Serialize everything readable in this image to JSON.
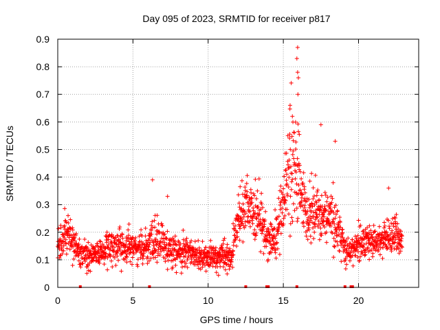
{
  "chart_data": {
    "type": "scatter",
    "title": "Day 095 of 2023, SRMTID for receiver p817",
    "xlabel": "GPS time / hours",
    "ylabel": "SRMTID / TECUs",
    "xlim": [
      0,
      24.0
    ],
    "ylim": [
      0,
      0.9
    ],
    "xticks": [
      0,
      5,
      10,
      15,
      20
    ],
    "xtick_labels": [
      "0",
      "5",
      "10",
      "15",
      "20"
    ],
    "yticks": [
      0,
      0.1,
      0.2,
      0.3,
      0.4,
      0.5,
      0.6,
      0.7,
      0.8,
      0.9
    ],
    "ytick_labels": [
      "0",
      "0.1",
      "0.2",
      "0.3",
      "0.4",
      "0.5",
      "0.6",
      "0.7",
      "0.8",
      "0.9"
    ],
    "grid": true,
    "legend": "none",
    "marker": "+",
    "color": "#ff0000",
    "series_envelope": {
      "description": "approximate per-hour envelope of a dense scatter of SRMTID values",
      "hours": [
        0,
        0.5,
        1,
        1.5,
        2,
        2.5,
        3,
        3.5,
        4,
        4.5,
        5,
        5.5,
        6,
        6.5,
        7,
        7.5,
        8,
        8.5,
        9,
        9.5,
        10,
        10.5,
        11,
        11.5,
        12,
        12.5,
        13,
        13.5,
        14,
        14.5,
        15,
        15.5,
        16,
        16.5,
        17,
        17.5,
        18,
        18.5,
        19,
        19.5,
        20,
        20.5,
        21,
        21.5,
        22,
        22.5,
        22.9
      ],
      "center": [
        0.15,
        0.2,
        0.17,
        0.12,
        0.11,
        0.12,
        0.13,
        0.15,
        0.15,
        0.14,
        0.15,
        0.15,
        0.14,
        0.17,
        0.16,
        0.14,
        0.13,
        0.13,
        0.12,
        0.11,
        0.1,
        0.11,
        0.12,
        0.1,
        0.25,
        0.3,
        0.28,
        0.24,
        0.16,
        0.18,
        0.3,
        0.45,
        0.4,
        0.25,
        0.28,
        0.27,
        0.25,
        0.25,
        0.15,
        0.13,
        0.16,
        0.17,
        0.17,
        0.17,
        0.18,
        0.19,
        0.16
      ],
      "spread": [
        0.05,
        0.07,
        0.05,
        0.04,
        0.04,
        0.04,
        0.04,
        0.05,
        0.05,
        0.05,
        0.05,
        0.05,
        0.05,
        0.07,
        0.05,
        0.05,
        0.05,
        0.05,
        0.04,
        0.04,
        0.04,
        0.04,
        0.05,
        0.04,
        0.07,
        0.09,
        0.09,
        0.08,
        0.05,
        0.07,
        0.12,
        0.2,
        0.16,
        0.08,
        0.1,
        0.08,
        0.08,
        0.09,
        0.05,
        0.04,
        0.05,
        0.05,
        0.05,
        0.05,
        0.06,
        0.06,
        0.04
      ],
      "peak_values": [
        {
          "x": 15.95,
          "y": 0.87
        },
        {
          "x": 15.9,
          "y": 0.83
        },
        {
          "x": 15.95,
          "y": 0.78
        },
        {
          "x": 16.0,
          "y": 0.76
        },
        {
          "x": 15.97,
          "y": 0.7
        },
        {
          "x": 15.45,
          "y": 0.66
        },
        {
          "x": 15.6,
          "y": 0.62
        },
        {
          "x": 17.5,
          "y": 0.59
        },
        {
          "x": 6.3,
          "y": 0.39
        },
        {
          "x": 22.0,
          "y": 0.36
        },
        {
          "x": 7.3,
          "y": 0.33
        },
        {
          "x": 18.45,
          "y": 0.53
        }
      ]
    },
    "zero_markers": [
      1.5,
      6.1,
      12.5,
      13.9,
      14.0,
      15.9,
      19.1,
      19.5,
      19.6
    ]
  }
}
